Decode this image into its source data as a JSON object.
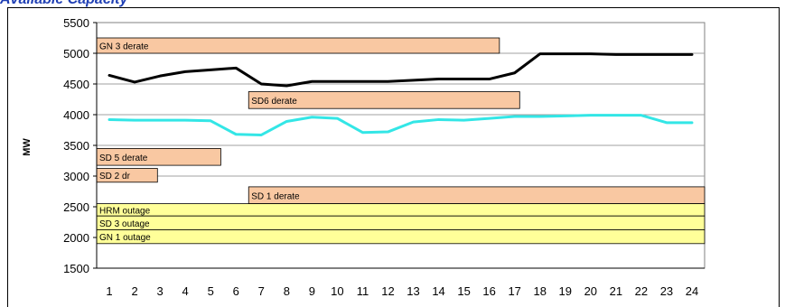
{
  "header": {
    "title": "Available Capacity"
  },
  "chart_data": {
    "type": "line",
    "ylabel": "MW",
    "xlabel": "",
    "ylim": [
      1500,
      5500
    ],
    "yticks": [
      1500,
      2000,
      2500,
      3000,
      3500,
      4000,
      4500,
      5000,
      5500
    ],
    "xlim": [
      0.5,
      24.5
    ],
    "x": [
      1,
      2,
      3,
      4,
      5,
      6,
      7,
      8,
      9,
      10,
      11,
      12,
      13,
      14,
      15,
      16,
      17,
      18,
      19,
      20,
      21,
      22,
      23,
      24
    ],
    "grid": "horizontal",
    "series": [
      {
        "color": "#000000",
        "values": [
          4640,
          4530,
          4630,
          4700,
          4730,
          4760,
          4500,
          4470,
          4540,
          4540,
          4540,
          4540,
          4560,
          4580,
          4580,
          4580,
          4680,
          4990,
          4990,
          4990,
          4980,
          4980,
          4980,
          4980
        ]
      },
      {
        "color": "#33e6e6",
        "values": [
          3920,
          3910,
          3910,
          3910,
          3900,
          3680,
          3670,
          3890,
          3960,
          3940,
          3710,
          3720,
          3880,
          3920,
          3910,
          3940,
          3970,
          3970,
          3980,
          3990,
          3990,
          3990,
          3870,
          3870
        ]
      }
    ],
    "outage_bands": [
      {
        "label": "GN 3 derate",
        "start": 0.5,
        "end": 16.4,
        "low": 5000,
        "high": 5250,
        "color": "#f9c8a2"
      },
      {
        "label": "SD6 derate",
        "start": 6.5,
        "end": 17.2,
        "low": 4100,
        "high": 4375,
        "color": "#f9c8a2"
      },
      {
        "label": "SD 5 derate",
        "start": 0.5,
        "end": 5.4,
        "low": 3175,
        "high": 3450,
        "color": "#f9c8a2"
      },
      {
        "label": "SD 2 dr",
        "start": 0.5,
        "end": 2.9,
        "low": 2900,
        "high": 3125,
        "color": "#f9c8a2"
      },
      {
        "label": "SD 1  derate",
        "start": 6.5,
        "end": 24.5,
        "low": 2550,
        "high": 2825,
        "color": "#f9c8a2"
      },
      {
        "label": "HRM  outage",
        "start": 0.5,
        "end": 24.5,
        "low": 2350,
        "high": 2550,
        "color": "#ffff99"
      },
      {
        "label": "SD 3  outage",
        "start": 0.5,
        "end": 24.5,
        "low": 2125,
        "high": 2350,
        "color": "#ffff99"
      },
      {
        "label": "GN 1  outage",
        "start": 0.5,
        "end": 24.5,
        "low": 1900,
        "high": 2125,
        "color": "#ffff99"
      }
    ]
  }
}
